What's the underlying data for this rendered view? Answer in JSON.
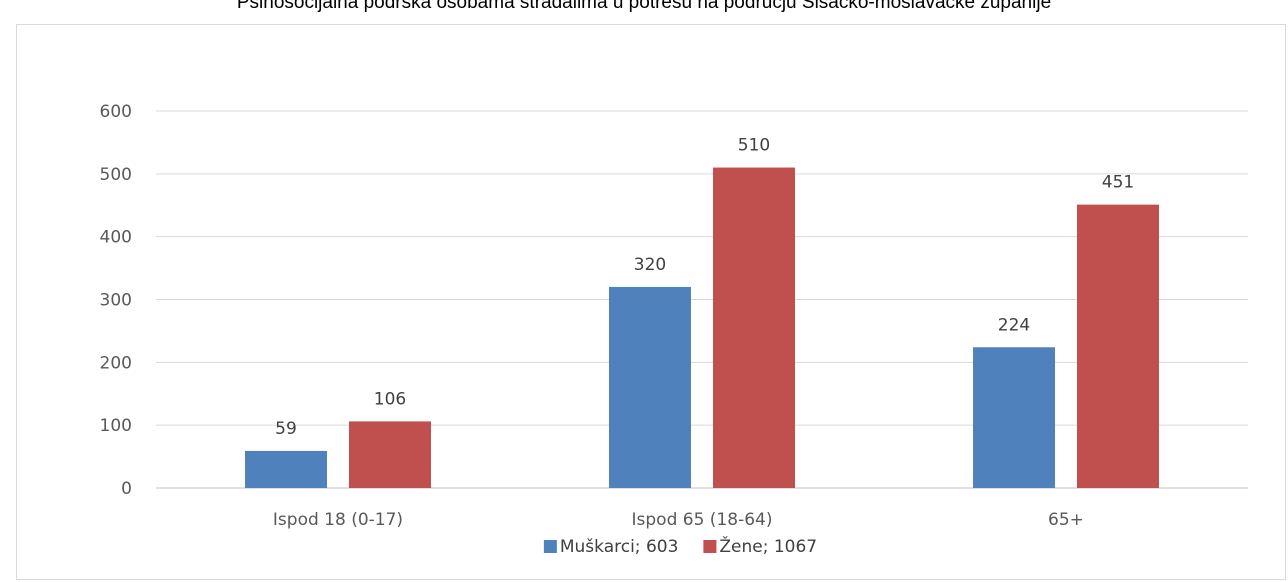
{
  "chart_data": {
    "type": "bar",
    "title": "Psihosocijalna podrška osobama stradalima u potresu na području Sisačko-moslavačke županije",
    "categories": [
      "Ispod 18 (0-17)",
      "Ispod 65 (18-64)",
      "65+"
    ],
    "series": [
      {
        "name": "Muškarci; 603",
        "values": [
          59,
          320,
          224
        ],
        "color": "#4f81bd"
      },
      {
        "name": "Žene; 1067",
        "values": [
          106,
          510,
          451
        ],
        "color": "#c0504d"
      }
    ],
    "ylim": [
      0,
      600
    ],
    "yticks": [
      0,
      100,
      200,
      300,
      400,
      500,
      600
    ],
    "grid": true,
    "legend": "bottom"
  }
}
